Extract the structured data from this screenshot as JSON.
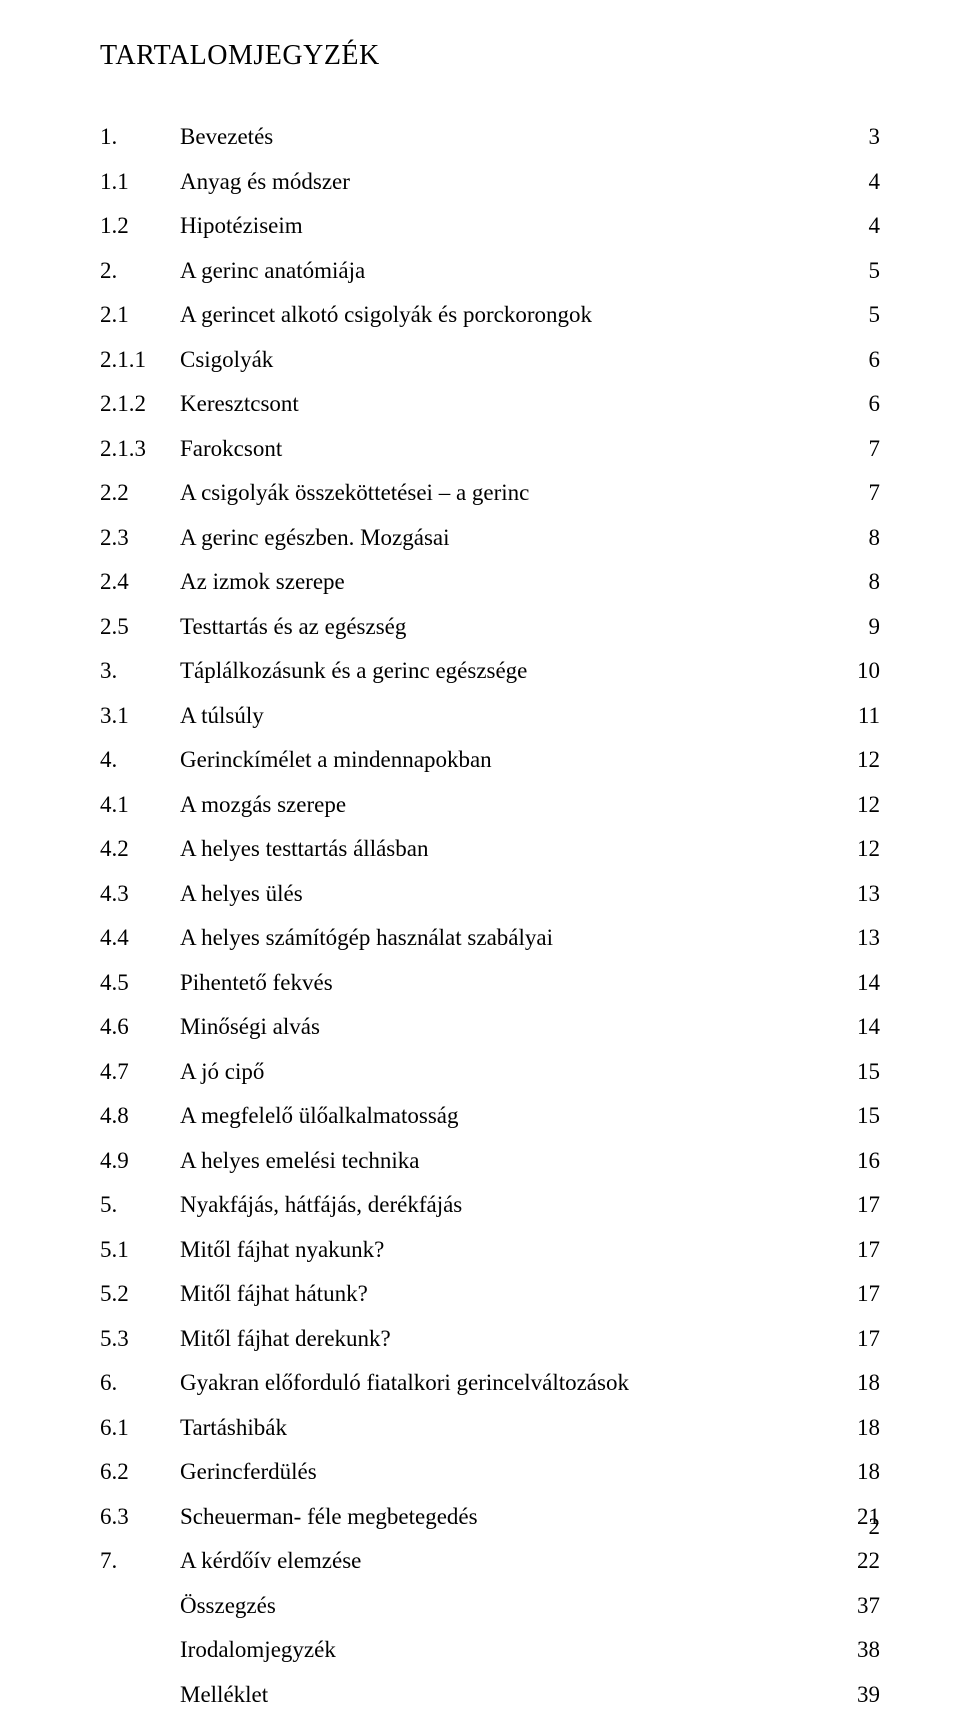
{
  "heading": "TARTALOMJEGYZÉK",
  "page_footer": "2",
  "toc": [
    {
      "num": "1.",
      "title": "Bevezetés",
      "page": "3"
    },
    {
      "num": "1.1",
      "title": "Anyag és módszer",
      "page": "4"
    },
    {
      "num": "1.2",
      "title": "Hipotéziseim",
      "page": "4"
    },
    {
      "num": "2.",
      "title": "A gerinc anatómiája",
      "page": "5"
    },
    {
      "num": "2.1",
      "title": "A gerincet alkotó csigolyák és porckorongok",
      "page": "5"
    },
    {
      "num": "2.1.1",
      "title": "Csigolyák",
      "page": "6"
    },
    {
      "num": "2.1.2",
      "title": "Keresztcsont",
      "page": "6"
    },
    {
      "num": "2.1.3",
      "title": "Farokcsont",
      "page": "7"
    },
    {
      "num": "2.2",
      "title": "A csigolyák összeköttetései – a gerinc",
      "page": "7"
    },
    {
      "num": "2.3",
      "title": "A gerinc egészben. Mozgásai",
      "page": "8"
    },
    {
      "num": "2.4",
      "title": "Az izmok szerepe",
      "page": "8"
    },
    {
      "num": "2.5",
      "title": "Testtartás és az egészség",
      "page": "9"
    },
    {
      "num": "3.",
      "title": "Táplálkozásunk és a gerinc egészsége",
      "page": "10"
    },
    {
      "num": "3.1",
      "title": "A túlsúly",
      "page": "11"
    },
    {
      "num": "4.",
      "title": "Gerinckímélet a mindennapokban",
      "page": "12"
    },
    {
      "num": "4.1",
      "title": "A mozgás szerepe",
      "page": "12"
    },
    {
      "num": "4.2",
      "title": "A helyes testtartás állásban",
      "page": "12"
    },
    {
      "num": "4.3",
      "title": "A helyes ülés",
      "page": "13"
    },
    {
      "num": "4.4",
      "title": "A helyes számítógép használat szabályai",
      "page": "13"
    },
    {
      "num": "4.5",
      "title": "Pihentető fekvés",
      "page": "14"
    },
    {
      "num": "4.6",
      "title": "Minőségi alvás",
      "page": "14"
    },
    {
      "num": "4.7",
      "title": "A jó cipő",
      "page": "15"
    },
    {
      "num": "4.8",
      "title": "A megfelelő ülőalkalmatosság",
      "page": "15"
    },
    {
      "num": "4.9",
      "title": "A helyes emelési technika",
      "page": "16"
    },
    {
      "num": "5.",
      "title": "Nyakfájás, hátfájás, derékfájás",
      "page": "17"
    },
    {
      "num": "5.1",
      "title": "Mitől fájhat nyakunk?",
      "page": "17"
    },
    {
      "num": "5.2",
      "title": "Mitől fájhat hátunk?",
      "page": "17"
    },
    {
      "num": "5.3",
      "title": "Mitől fájhat derekunk?",
      "page": "17"
    },
    {
      "num": "6.",
      "title": "Gyakran előforduló fiatalkori gerincelváltozások",
      "page": "18"
    },
    {
      "num": "6.1",
      "title": "Tartáshibák",
      "page": "18"
    },
    {
      "num": "6.2",
      "title": "Gerincferdülés",
      "page": "18"
    },
    {
      "num": "6.3",
      "title": "Scheuerman- féle megbetegedés",
      "page": "21"
    },
    {
      "num": "7.",
      "title": "A kérdőív elemzése",
      "page": "22"
    },
    {
      "num": "",
      "title": "Összegzés",
      "page": "37"
    },
    {
      "num": "",
      "title": "Irodalomjegyzék",
      "page": "38"
    },
    {
      "num": "",
      "title": "Melléklet",
      "page": "39"
    }
  ]
}
